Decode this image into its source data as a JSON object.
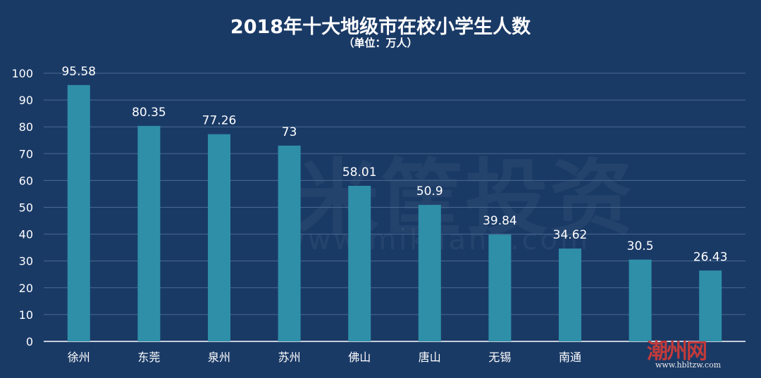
{
  "chart_data": {
    "type": "bar",
    "title": "2018年十大地级市在校小学生人数",
    "subtitle": "（单位：万人）",
    "categories": [
      "徐州",
      "东莞",
      "泉州",
      "苏州",
      "佛山",
      "唐山",
      "无锡",
      "南通",
      "",
      ""
    ],
    "values": [
      95.58,
      80.35,
      77.26,
      73,
      58.01,
      50.9,
      39.84,
      34.62,
      30.5,
      26.43
    ],
    "value_labels": [
      "95.58",
      "80.35",
      "77.26",
      "73",
      "58.01",
      "50.9",
      "39.84",
      "34.62",
      "30.5",
      "26.43"
    ],
    "ylim": [
      0,
      100
    ],
    "yticks": [
      0,
      10,
      20,
      30,
      40,
      50,
      60,
      70,
      80,
      90,
      100
    ],
    "grid": true,
    "bar_color": "#2f8fa8",
    "grid_color": "#4a6a92"
  },
  "watermark": {
    "background_text": "米筐投资",
    "background_url": "www.mikuang.com",
    "corner_text": "潮州网",
    "corner_url": "www.hbltzw.com"
  }
}
